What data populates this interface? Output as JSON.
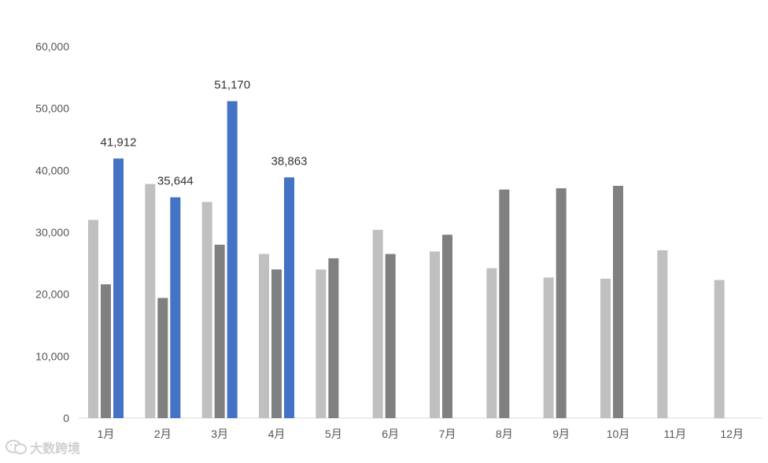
{
  "chart_data": {
    "type": "bar",
    "categories": [
      "1月",
      "2月",
      "3月",
      "4月",
      "5月",
      "6月",
      "7月",
      "8月",
      "9月",
      "10月",
      "11月",
      "12月"
    ],
    "series": [
      {
        "color": "#c0c0c0",
        "values": [
          32000,
          37800,
          34900,
          26500,
          24000,
          30400,
          26900,
          24200,
          22700,
          22500,
          27100,
          22300
        ]
      },
      {
        "color": "#808080",
        "values": [
          21600,
          19400,
          28000,
          24000,
          25800,
          26500,
          29600,
          36900,
          37100,
          37500,
          null,
          null
        ]
      },
      {
        "color": "#4472c4",
        "values": [
          41912,
          35644,
          51170,
          38863,
          null,
          null,
          null,
          null,
          null,
          null,
          null,
          null
        ],
        "data_labels": [
          "41,912",
          "35,644",
          "51,170",
          "38,863"
        ]
      }
    ],
    "yticks": [
      "0",
      "10,000",
      "20,000",
      "30,000",
      "40,000",
      "50,000",
      "60,000"
    ],
    "ylim": [
      0,
      60000
    ],
    "grid": false,
    "legend": "none"
  },
  "watermark": {
    "text": "大数跨境",
    "icon": "wechat-logo-icon"
  }
}
